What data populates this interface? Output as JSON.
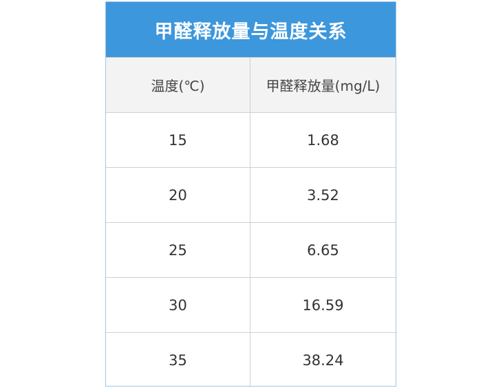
{
  "chart_data": {
    "type": "table",
    "title": "甲醛释放量与温度关系",
    "columns": [
      "温度(℃)",
      "甲醛释放量(mg/L)"
    ],
    "rows": [
      [
        "15",
        "1.68"
      ],
      [
        "20",
        "3.52"
      ],
      [
        "25",
        "6.65"
      ],
      [
        "30",
        "16.59"
      ],
      [
        "35",
        "38.24"
      ]
    ]
  },
  "colors": {
    "title_bg": "#3d97dc",
    "header_bg": "#f3f3f3",
    "border": "#cfcfcf"
  }
}
